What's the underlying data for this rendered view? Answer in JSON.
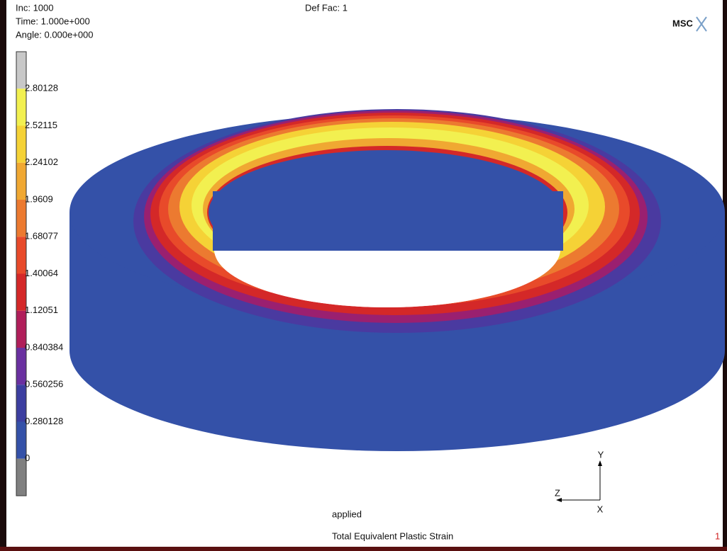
{
  "header": {
    "increment": "Inc:  1000",
    "time": "Time:  1.000e+000",
    "angle": "Angle: 0.000e+000",
    "def_fac": "Def Fac:  1",
    "logo": "MSC"
  },
  "legend": {
    "labels": [
      "2.80128",
      "2.52115",
      "2.24102",
      "1.9609",
      "1.68077",
      "1.40064",
      "1.12051",
      "0.840384",
      "0.560256",
      "0.280128",
      "0"
    ],
    "colors": [
      "#c8c8c8",
      "#f2f050",
      "#f5d236",
      "#f0a832",
      "#ec7a30",
      "#e84a2a",
      "#d42828",
      "#b01e5a",
      "#6a30a0",
      "#3c3ea0",
      "#3451a8",
      "#808080"
    ]
  },
  "triad": {
    "y": "Y",
    "z": "Z",
    "x": "X"
  },
  "footer": {
    "label": "applied",
    "title": "Total Equivalent Plastic Strain",
    "index": "1"
  }
}
